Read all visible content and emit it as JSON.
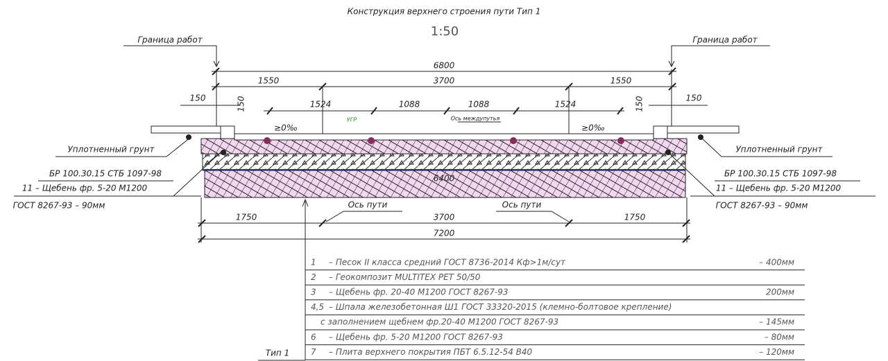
{
  "title": "Конструкция верхнего строения пути Тип 1",
  "scale": "1:50",
  "boundary": {
    "left": "Граница работ",
    "right": "Граница работ"
  },
  "dimensions": {
    "total_top": "6800",
    "top_row": [
      "1550",
      "3700",
      "1550"
    ],
    "edge": [
      "150",
      "150",
      "150",
      "150"
    ],
    "sleepers": [
      "1524",
      "1088",
      "1088",
      "1524"
    ],
    "inner": "6400",
    "bottom_row": [
      "1750",
      "3700",
      "1750"
    ],
    "total_bottom": "7200"
  },
  "slopes": [
    "≥0‰",
    "≥0‰"
  ],
  "marks": {
    "ugr": "УГР",
    "axis_between": "Ось междупутья",
    "track_axis": [
      "Ось пути",
      "Ось пути"
    ]
  },
  "side_labels": {
    "left": [
      "Уплотненный грунт",
      "БР 100.30.15 СТБ 1097-98",
      "11 – Щебень фр. 5-20 М1200",
      "ГОСТ 8267-93 – 90мм"
    ],
    "right": [
      "Уплотненный грунт",
      "БР 100.30.15 СТБ 1097-98",
      "11 – Щебень фр. 5-20 М1200",
      "ГОСТ 8267-93 – 90мм"
    ]
  },
  "legend": {
    "type_label": "Тип 1",
    "rows": [
      {
        "num": "1",
        "text": "– Песок II класса средний ГОСТ 8736-2014 Кф>1м/сут",
        "thickness": "– 400мм"
      },
      {
        "num": "2",
        "text": "– Геокомпозит MULTITEX PET 50/50"
      },
      {
        "num": "3",
        "text": "– Щебень фр. 20-40 М1200 ГОСТ 8267-93",
        "thickness": "200мм"
      },
      {
        "num": "4,5",
        "text": "– Шпала железобетонная Ш1 ГОСТ 33320-2015 (клемно-болтовое крепление)"
      },
      {
        "text": "с заполнением щебнем фр.20-40 М1200 ГОСТ 8267-93",
        "thickness": "– 145мм"
      },
      {
        "num": "6",
        "text": "– Щебень фр. 5-20 М1200 ГОСТ 8267-93",
        "thickness": "– 80мм"
      },
      {
        "num": "7",
        "text": "– Плита верхнего покрытия ПБТ 6.5.12-54 В40",
        "thickness": "– 120мм"
      }
    ]
  }
}
